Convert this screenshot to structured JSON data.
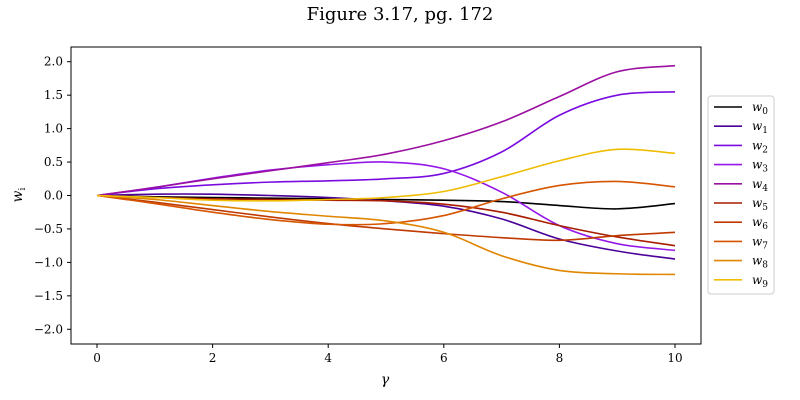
{
  "chart_data": {
    "type": "line",
    "title": "Figure 3.17, pg. 172",
    "xlabel": "γ",
    "ylabel_main": "w",
    "ylabel_sub": "i",
    "xlim": [
      -0.45,
      10.45
    ],
    "ylim": [
      -2.22,
      2.22
    ],
    "xticks": [
      0,
      2,
      4,
      6,
      8,
      10
    ],
    "yticks": [
      -2.0,
      -1.5,
      -1.0,
      -0.5,
      0.0,
      0.5,
      1.0,
      1.5,
      2.0
    ],
    "xtick_labels": [
      "0",
      "2",
      "4",
      "6",
      "8",
      "10"
    ],
    "ytick_labels": [
      "−2.0",
      "−1.5",
      "−1.0",
      "−0.5",
      "0.0",
      "0.5",
      "1.0",
      "1.5",
      "2.0"
    ],
    "x": [
      0,
      1,
      2,
      3,
      4,
      5,
      6,
      7,
      8,
      9,
      10
    ],
    "legend_position": "right",
    "series": [
      {
        "name": "w",
        "sub": "0",
        "color": "#000000",
        "values": [
          0,
          -0.02,
          -0.03,
          -0.04,
          -0.05,
          -0.06,
          -0.07,
          -0.09,
          -0.15,
          -0.2,
          -0.12
        ]
      },
      {
        "name": "w",
        "sub": "1",
        "color": "#4a0099",
        "values": [
          0,
          0.02,
          0.02,
          0.0,
          -0.03,
          -0.08,
          -0.16,
          -0.35,
          -0.65,
          -0.83,
          -0.95
        ]
      },
      {
        "name": "w",
        "sub": "2",
        "color": "#7a0ce0",
        "values": [
          0,
          0.1,
          0.16,
          0.2,
          0.22,
          0.25,
          0.33,
          0.65,
          1.2,
          1.5,
          1.55
        ]
      },
      {
        "name": "w",
        "sub": "3",
        "color": "#9618e8",
        "values": [
          0,
          0.12,
          0.26,
          0.38,
          0.46,
          0.5,
          0.4,
          0.05,
          -0.45,
          -0.72,
          -0.82
        ]
      },
      {
        "name": "w",
        "sub": "4",
        "color": "#9a10a0",
        "values": [
          0,
          0.12,
          0.25,
          0.37,
          0.49,
          0.62,
          0.82,
          1.1,
          1.48,
          1.85,
          1.94
        ]
      },
      {
        "name": "w",
        "sub": "5",
        "color": "#a81c00",
        "values": [
          0,
          -0.03,
          -0.05,
          -0.06,
          -0.07,
          -0.08,
          -0.13,
          -0.25,
          -0.45,
          -0.62,
          -0.75
        ]
      },
      {
        "name": "w",
        "sub": "6",
        "color": "#bf3a00",
        "values": [
          0,
          -0.1,
          -0.21,
          -0.32,
          -0.42,
          -0.5,
          -0.57,
          -0.63,
          -0.67,
          -0.6,
          -0.55
        ]
      },
      {
        "name": "w",
        "sub": "7",
        "color": "#d65500",
        "values": [
          0,
          -0.12,
          -0.25,
          -0.36,
          -0.43,
          -0.42,
          -0.3,
          -0.05,
          0.15,
          0.21,
          0.13
        ]
      },
      {
        "name": "w",
        "sub": "8",
        "color": "#e08600",
        "values": [
          0,
          -0.06,
          -0.15,
          -0.24,
          -0.31,
          -0.38,
          -0.55,
          -0.9,
          -1.12,
          -1.17,
          -1.18
        ]
      },
      {
        "name": "w",
        "sub": "9",
        "color": "#f0bc00",
        "values": [
          0,
          -0.03,
          -0.07,
          -0.08,
          -0.06,
          -0.03,
          0.06,
          0.28,
          0.52,
          0.69,
          0.63
        ]
      }
    ]
  }
}
